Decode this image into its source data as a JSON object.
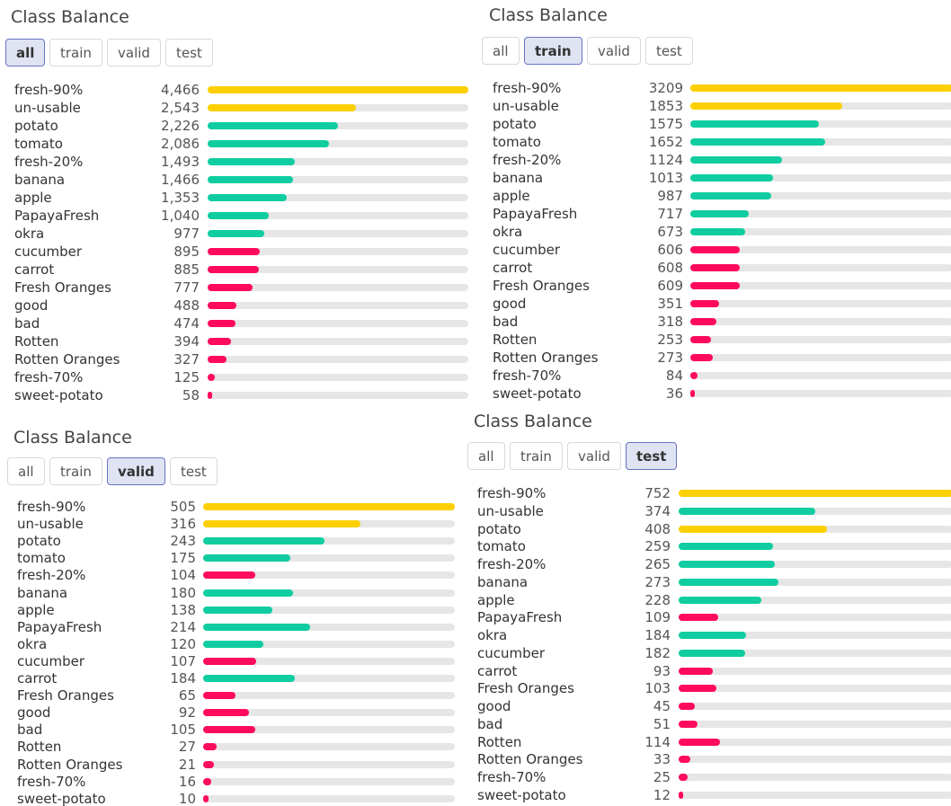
{
  "chart_data": [
    {
      "type": "bar",
      "title": "Class Balance",
      "tabs": [
        "all",
        "train",
        "valid",
        "test"
      ],
      "selected_tab": 0,
      "categories": [
        "fresh-90%",
        "un-usable",
        "potato",
        "tomato",
        "fresh-20%",
        "banana",
        "apple",
        "PapayaFresh",
        "okra",
        "cucumber",
        "carrot",
        "Fresh Oranges",
        "good",
        "bad",
        "Rotten",
        "Rotten Oranges",
        "fresh-70%",
        "sweet-potato"
      ],
      "values": [
        4466,
        2543,
        2226,
        2086,
        1493,
        1466,
        1353,
        1040,
        977,
        895,
        885,
        777,
        488,
        474,
        394,
        327,
        125,
        58
      ],
      "value_labels": [
        "4,466",
        "2,543",
        "2,226",
        "2,086",
        "1,493",
        "1,466",
        "1,353",
        "1,040",
        "977",
        "895",
        "885",
        "777",
        "488",
        "474",
        "394",
        "327",
        "125",
        "58"
      ],
      "colors": [
        "#fcd000",
        "#fcd000",
        "#0fcda0",
        "#0fcda0",
        "#0fcda0",
        "#0fcda0",
        "#0fcda0",
        "#0fcda0",
        "#0fcda0",
        "#ff0a5c",
        "#ff0a5c",
        "#ff0a5c",
        "#ff0a5c",
        "#ff0a5c",
        "#ff0a5c",
        "#ff0a5c",
        "#ff0a5c",
        "#ff0a5c"
      ]
    },
    {
      "type": "bar",
      "title": "Class Balance",
      "tabs": [
        "all",
        "train",
        "valid",
        "test"
      ],
      "selected_tab": 1,
      "categories": [
        "fresh-90%",
        "un-usable",
        "potato",
        "tomato",
        "fresh-20%",
        "banana",
        "apple",
        "PapayaFresh",
        "okra",
        "cucumber",
        "carrot",
        "Fresh Oranges",
        "good",
        "bad",
        "Rotten",
        "Rotten Oranges",
        "fresh-70%",
        "sweet-potato"
      ],
      "values": [
        3209,
        1853,
        1575,
        1652,
        1124,
        1013,
        987,
        717,
        673,
        606,
        608,
        609,
        351,
        318,
        253,
        273,
        84,
        36
      ],
      "colors": [
        "#fcd000",
        "#fcd000",
        "#0fcda0",
        "#0fcda0",
        "#0fcda0",
        "#0fcda0",
        "#0fcda0",
        "#0fcda0",
        "#0fcda0",
        "#ff0a5c",
        "#ff0a5c",
        "#ff0a5c",
        "#ff0a5c",
        "#ff0a5c",
        "#ff0a5c",
        "#ff0a5c",
        "#ff0a5c",
        "#ff0a5c"
      ]
    },
    {
      "type": "bar",
      "title": "Class Balance",
      "tabs": [
        "all",
        "train",
        "valid",
        "test"
      ],
      "selected_tab": 2,
      "categories": [
        "fresh-90%",
        "un-usable",
        "potato",
        "tomato",
        "fresh-20%",
        "banana",
        "apple",
        "PapayaFresh",
        "okra",
        "cucumber",
        "carrot",
        "Fresh Oranges",
        "good",
        "bad",
        "Rotten",
        "Rotten Oranges",
        "fresh-70%",
        "sweet-potato"
      ],
      "values": [
        505,
        316,
        243,
        175,
        104,
        180,
        138,
        214,
        120,
        107,
        184,
        65,
        92,
        105,
        27,
        21,
        16,
        10
      ],
      "colors": [
        "#fcd000",
        "#fcd000",
        "#0fcda0",
        "#0fcda0",
        "#ff0a5c",
        "#0fcda0",
        "#0fcda0",
        "#0fcda0",
        "#0fcda0",
        "#ff0a5c",
        "#0fcda0",
        "#ff0a5c",
        "#ff0a5c",
        "#ff0a5c",
        "#ff0a5c",
        "#ff0a5c",
        "#ff0a5c",
        "#ff0a5c"
      ]
    },
    {
      "type": "bar",
      "title": "Class Balance",
      "tabs": [
        "all",
        "train",
        "valid",
        "test"
      ],
      "selected_tab": 3,
      "categories": [
        "fresh-90%",
        "un-usable",
        "potato",
        "tomato",
        "fresh-20%",
        "banana",
        "apple",
        "PapayaFresh",
        "okra",
        "cucumber",
        "carrot",
        "Fresh Oranges",
        "good",
        "bad",
        "Rotten",
        "Rotten Oranges",
        "fresh-70%",
        "sweet-potato"
      ],
      "values": [
        752,
        374,
        408,
        259,
        265,
        273,
        228,
        109,
        184,
        182,
        93,
        103,
        45,
        51,
        114,
        33,
        25,
        12
      ],
      "colors": [
        "#fcd000",
        "#0fcda0",
        "#fcd000",
        "#0fcda0",
        "#0fcda0",
        "#0fcda0",
        "#0fcda0",
        "#ff0a5c",
        "#0fcda0",
        "#0fcda0",
        "#ff0a5c",
        "#ff0a5c",
        "#ff0a5c",
        "#ff0a5c",
        "#ff0a5c",
        "#ff0a5c",
        "#ff0a5c",
        "#ff0a5c"
      ]
    }
  ]
}
